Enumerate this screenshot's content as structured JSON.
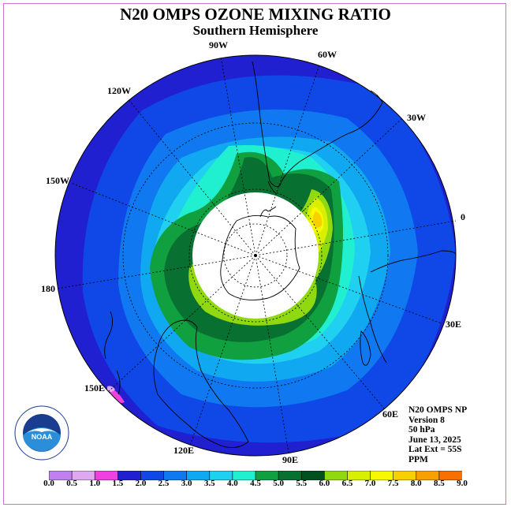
{
  "title": "N20 OMPS OZONE MIXING RATIO",
  "subtitle": "Southern Hemisphere",
  "longitude_labels": [
    {
      "id": "90w",
      "text": "90W"
    },
    {
      "id": "60w",
      "text": "60W"
    },
    {
      "id": "120w",
      "text": "120W"
    },
    {
      "id": "30w",
      "text": "30W"
    },
    {
      "id": "150w",
      "text": "150W"
    },
    {
      "id": "0",
      "text": "0"
    },
    {
      "id": "180",
      "text": "180"
    },
    {
      "id": "30e",
      "text": "30E"
    },
    {
      "id": "150e",
      "text": "150E"
    },
    {
      "id": "60e",
      "text": "60E"
    },
    {
      "id": "120e",
      "text": "120E"
    },
    {
      "id": "90e",
      "text": "90E"
    }
  ],
  "info": {
    "instrument": "N20 OMPS NP",
    "version": "Version 8",
    "level": "50 hPa",
    "date": "June 13, 2025",
    "lat_extent": "Lat Ext = 55S",
    "units": "PPM"
  },
  "colorbar": {
    "labels": [
      "0.0",
      "0.5",
      "1.0",
      "1.5",
      "2.0",
      "2.5",
      "3.0",
      "3.5",
      "4.0",
      "4.5",
      "5.0",
      "5.5",
      "6.0",
      "6.5",
      "7.0",
      "7.5",
      "8.0",
      "8.5",
      "9.0"
    ],
    "colors": [
      "#c080f0",
      "#e0a8f0",
      "#f040e0",
      "#2020d0",
      "#1048e8",
      "#1078f0",
      "#10a8f0",
      "#20d0f0",
      "#20f0d0",
      "#10a040",
      "#087030",
      "#005020",
      "#90d810",
      "#d8f000",
      "#f8f800",
      "#f8d000",
      "#f8a000",
      "#f87000",
      "#f02020",
      "#b03010",
      "#806040"
    ]
  },
  "noaa": {
    "wordmark": "NOAA"
  }
}
